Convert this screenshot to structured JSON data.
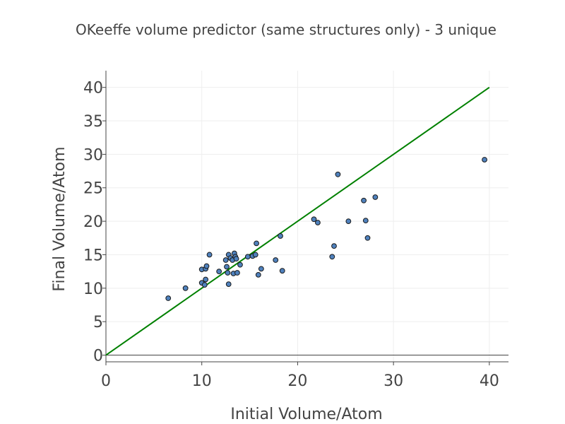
{
  "chart_data": {
    "type": "scatter",
    "title": "OKeeffe volume predictor (same structures only) - 3 unique",
    "xlabel": "Initial Volume/Atom",
    "ylabel": "Final Volume/Atom",
    "xlim": [
      0,
      42
    ],
    "ylim": [
      -1,
      42.5
    ],
    "xticks": [
      0,
      10,
      20,
      30,
      40
    ],
    "yticks": [
      0,
      5,
      10,
      15,
      20,
      25,
      30,
      35,
      40
    ],
    "xtick_labels": [
      "0",
      "10",
      "20",
      "30",
      "40"
    ],
    "ytick_labels": [
      "0",
      "5",
      "10",
      "15",
      "20",
      "25",
      "30",
      "35",
      "40"
    ],
    "grid": true,
    "series": [
      {
        "marker_color": "#4f81bd",
        "points": [
          [
            6.5,
            8.5
          ],
          [
            8.3,
            10.0
          ],
          [
            10.0,
            10.8
          ],
          [
            10.0,
            12.8
          ],
          [
            10.3,
            10.5
          ],
          [
            10.4,
            11.3
          ],
          [
            10.4,
            12.9
          ],
          [
            10.5,
            13.3
          ],
          [
            10.8,
            15.0
          ],
          [
            11.8,
            12.5
          ],
          [
            12.5,
            14.2
          ],
          [
            12.6,
            13.2
          ],
          [
            12.7,
            12.3
          ],
          [
            12.8,
            10.6
          ],
          [
            12.8,
            15.0
          ],
          [
            13.0,
            14.5
          ],
          [
            13.2,
            14.2
          ],
          [
            13.3,
            12.2
          ],
          [
            13.4,
            15.2
          ],
          [
            13.5,
            14.7
          ],
          [
            13.6,
            14.4
          ],
          [
            13.7,
            12.3
          ],
          [
            14.0,
            13.5
          ],
          [
            14.8,
            14.7
          ],
          [
            15.3,
            14.8
          ],
          [
            15.6,
            15.0
          ],
          [
            15.7,
            16.7
          ],
          [
            15.9,
            12.0
          ],
          [
            16.2,
            12.9
          ],
          [
            17.7,
            14.2
          ],
          [
            18.2,
            17.8
          ],
          [
            18.4,
            12.6
          ],
          [
            21.7,
            20.3
          ],
          [
            22.1,
            19.8
          ],
          [
            23.6,
            14.7
          ],
          [
            23.8,
            16.3
          ],
          [
            24.2,
            27.0
          ],
          [
            25.3,
            20.0
          ],
          [
            26.9,
            23.1
          ],
          [
            27.1,
            20.1
          ],
          [
            27.3,
            17.5
          ],
          [
            28.1,
            23.6
          ],
          [
            39.5,
            29.2
          ]
        ]
      },
      {
        "line_color": "#008000",
        "x": [
          0,
          40
        ],
        "y": [
          0,
          40
        ]
      }
    ]
  }
}
